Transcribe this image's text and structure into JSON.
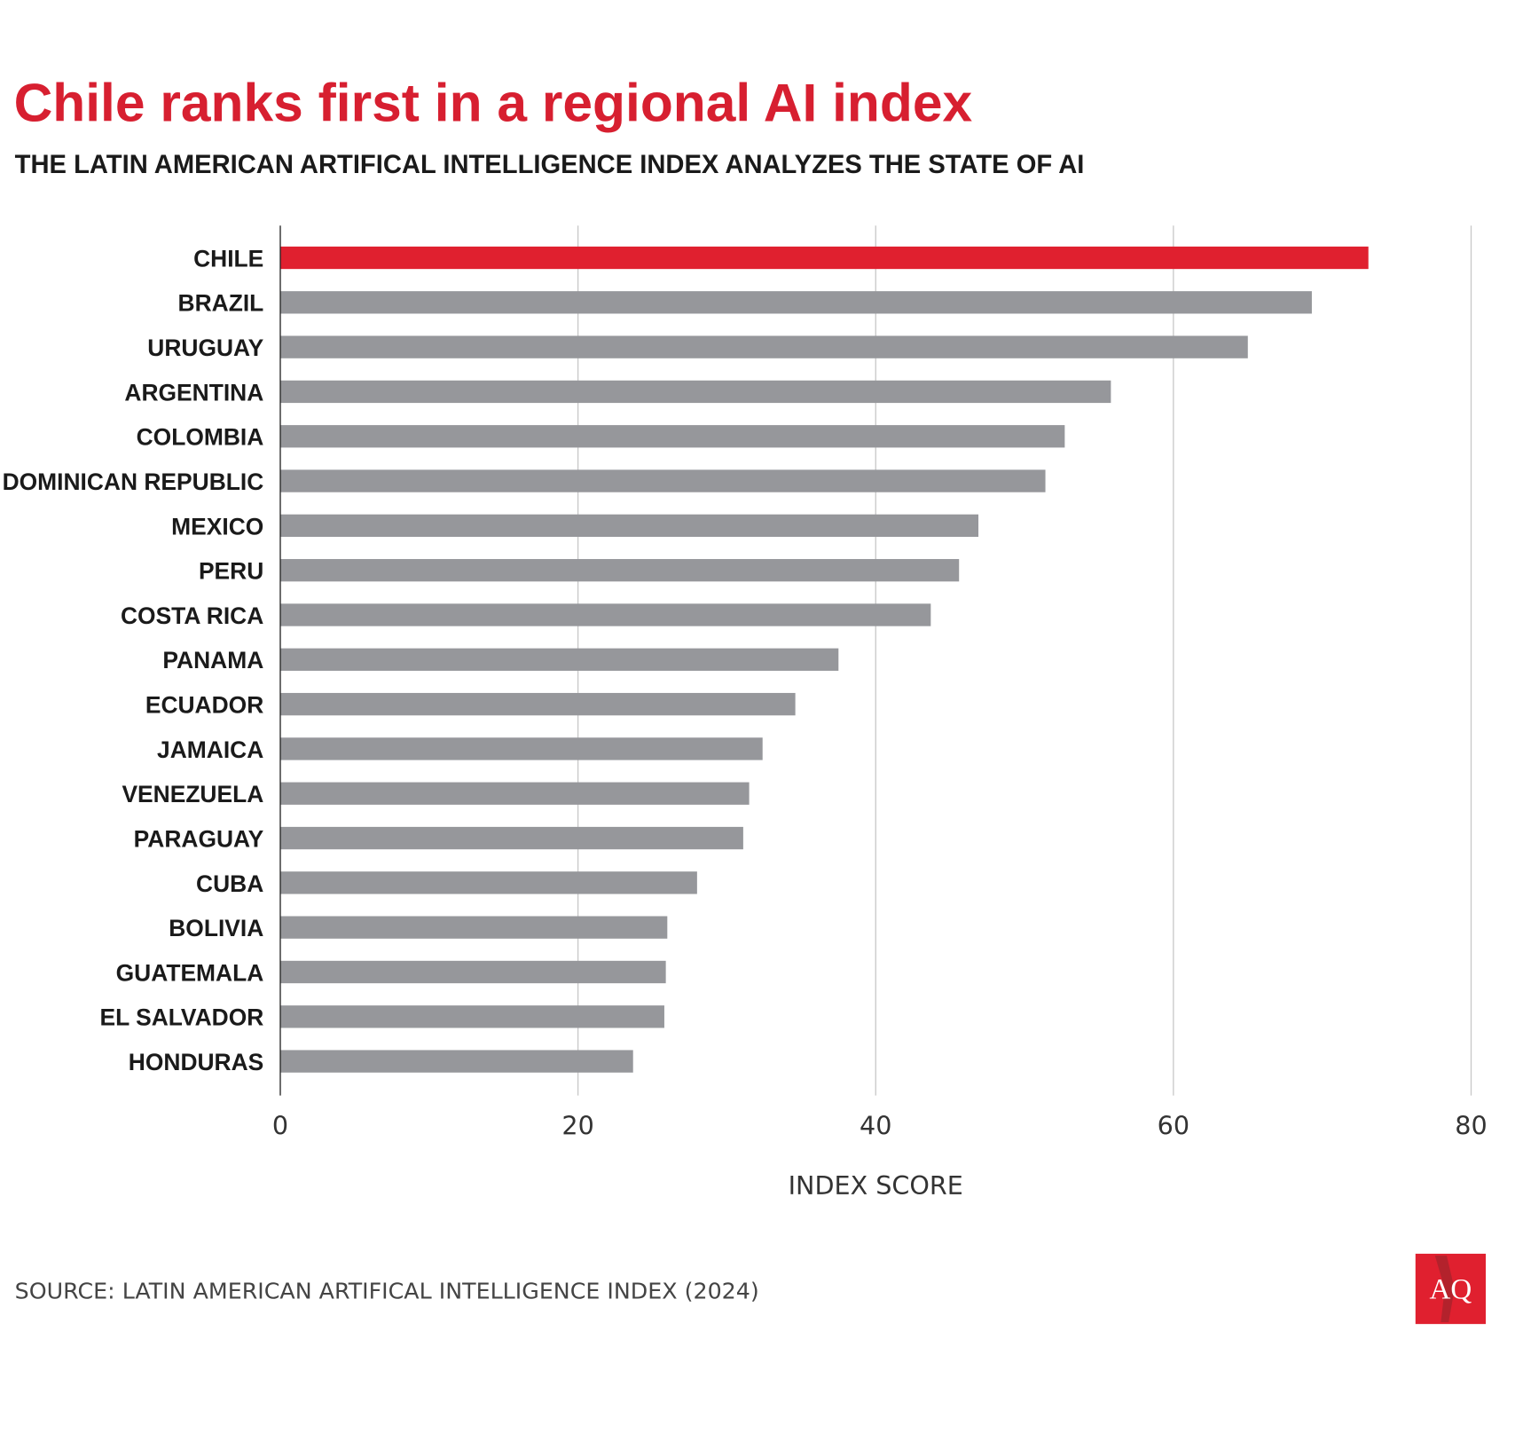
{
  "colors": {
    "highlight": "#e0202f",
    "bar": "#96979b",
    "grid": "#c8c8c8",
    "title": "#d71f30"
  },
  "logo": {
    "text": "AQ"
  },
  "chart_data": {
    "type": "bar",
    "orientation": "horizontal",
    "title": "Chile ranks first in a regional AI index",
    "subtitle": "THE LATIN AMERICAN ARTIFICAL INTELLIGENCE INDEX ANALYZES THE STATE OF AI",
    "xlabel": "INDEX SCORE",
    "ylabel": "",
    "xlim": [
      0,
      80
    ],
    "xticks": [
      "0",
      "20",
      "40",
      "60",
      "80"
    ],
    "grid": true,
    "highlight": "CHILE",
    "categories": [
      "CHILE",
      "BRAZIL",
      "URUGUAY",
      "ARGENTINA",
      "COLOMBIA",
      "DOMINICAN REPUBLIC",
      "MEXICO",
      "PERU",
      "COSTA RICA",
      "PANAMA",
      "ECUADOR",
      "JAMAICA",
      "VENEZUELA",
      "PARAGUAY",
      "CUBA",
      "BOLIVIA",
      "GUATEMALA",
      "EL SALVADOR",
      "HONDURAS"
    ],
    "values": [
      73.1,
      69.3,
      65.0,
      55.8,
      52.7,
      51.4,
      46.9,
      45.6,
      43.7,
      37.5,
      34.6,
      32.4,
      31.5,
      31.1,
      28.0,
      26.0,
      25.9,
      25.8,
      23.7
    ],
    "source": "SOURCE: LATIN AMERICAN ARTIFICAL INTELLIGENCE INDEX (2024)"
  }
}
